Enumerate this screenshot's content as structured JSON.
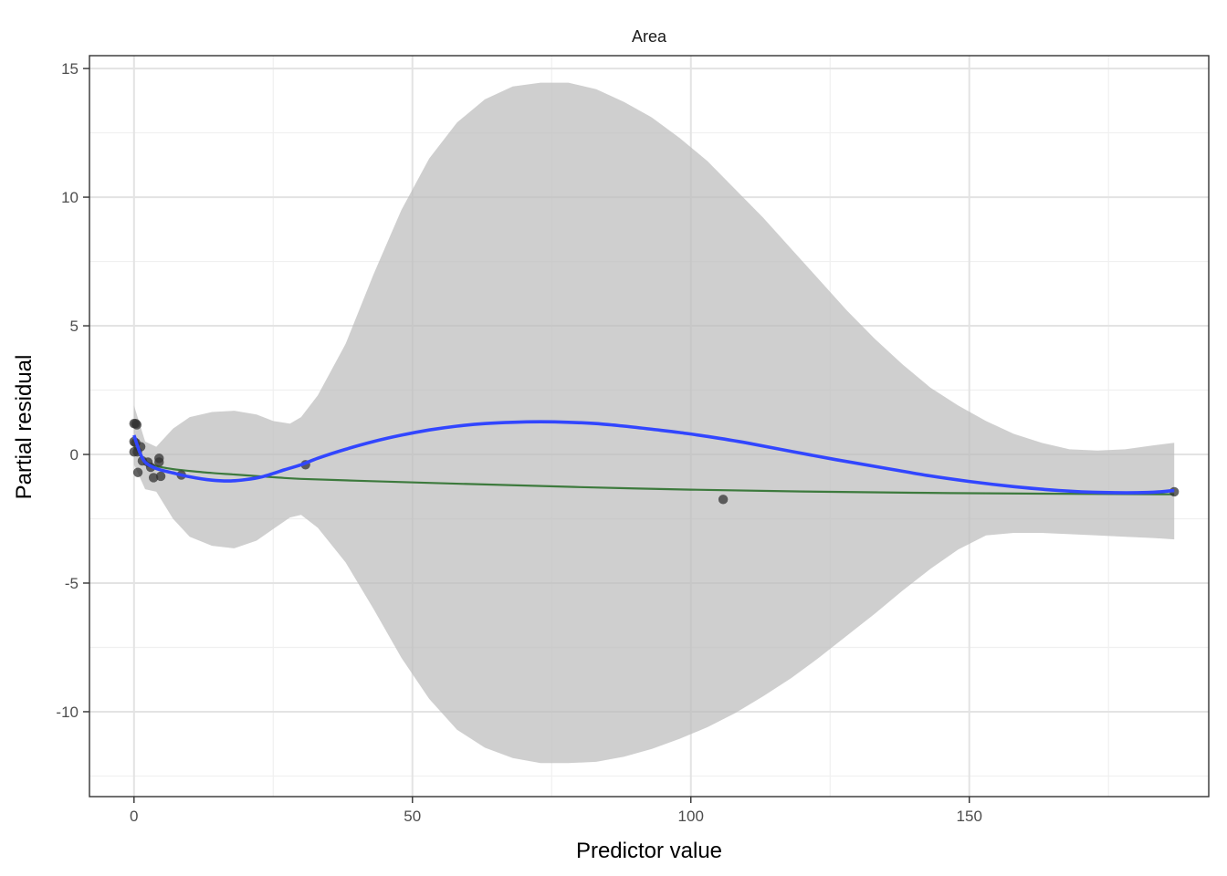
{
  "chart_data": {
    "type": "scatter",
    "facet_title": "Area",
    "xlabel": "Predictor value",
    "ylabel": "Partial residual",
    "xlim": [
      -8,
      193
    ],
    "ylim": [
      -13.3,
      15.5
    ],
    "x_ticks": [
      0,
      50,
      100,
      150
    ],
    "x_tick_labels": [
      "0",
      "50",
      "100",
      "150"
    ],
    "y_ticks": [
      -10,
      -5,
      0,
      5,
      10,
      15
    ],
    "y_tick_labels": [
      "-10",
      "-5",
      "0",
      "5",
      "10",
      "15"
    ],
    "grid": true,
    "colors": {
      "points": "#333333",
      "smooth": "#3246ff",
      "fit": "#3d7a3d",
      "ribbon": "#bdbdbd",
      "grid_major": "#e3e3e3",
      "grid_minor": "#f0f0f0",
      "panel_border": "#333333"
    },
    "points": [
      {
        "x": 0.0,
        "y": 1.2
      },
      {
        "x": 0.3,
        "y": 1.2
      },
      {
        "x": 0.5,
        "y": 1.15
      },
      {
        "x": 0.0,
        "y": 0.5
      },
      {
        "x": 0.3,
        "y": 0.45
      },
      {
        "x": 0.0,
        "y": 0.1
      },
      {
        "x": 0.6,
        "y": 0.1
      },
      {
        "x": 1.2,
        "y": 0.3
      },
      {
        "x": 0.7,
        "y": -0.7
      },
      {
        "x": 1.5,
        "y": -0.25
      },
      {
        "x": 2.5,
        "y": -0.3
      },
      {
        "x": 3.0,
        "y": -0.5
      },
      {
        "x": 3.5,
        "y": -0.9
      },
      {
        "x": 4.5,
        "y": -0.15
      },
      {
        "x": 4.5,
        "y": -0.3
      },
      {
        "x": 4.8,
        "y": -0.85
      },
      {
        "x": 8.5,
        "y": -0.8
      },
      {
        "x": 30.8,
        "y": -0.4
      },
      {
        "x": 105.8,
        "y": -1.75
      },
      {
        "x": 186.8,
        "y": -1.45
      }
    ],
    "smooth_line": {
      "x": [
        0,
        1,
        2,
        4,
        7,
        10,
        14,
        17,
        20,
        23,
        27,
        30,
        33,
        38,
        43,
        48,
        53,
        58,
        63,
        68,
        73,
        78,
        83,
        88,
        93,
        98,
        103,
        110,
        118,
        126,
        134,
        142,
        150,
        158,
        166,
        174,
        182,
        186.8
      ],
      "y": [
        0.75,
        0.1,
        -0.3,
        -0.55,
        -0.72,
        -0.87,
        -1.0,
        -1.03,
        -0.98,
        -0.87,
        -0.6,
        -0.4,
        -0.15,
        0.2,
        0.5,
        0.75,
        0.95,
        1.1,
        1.2,
        1.25,
        1.27,
        1.25,
        1.2,
        1.1,
        0.98,
        0.85,
        0.7,
        0.45,
        0.12,
        -0.2,
        -0.5,
        -0.8,
        -1.05,
        -1.25,
        -1.4,
        -1.48,
        -1.48,
        -1.4
      ]
    },
    "fit_line": {
      "x": [
        0,
        2,
        4,
        7,
        10,
        14,
        18,
        22,
        26,
        30,
        40,
        60,
        80,
        100,
        120,
        140,
        160,
        186.8
      ],
      "y": [
        0.3,
        -0.25,
        -0.45,
        -0.57,
        -0.64,
        -0.72,
        -0.78,
        -0.84,
        -0.9,
        -0.95,
        -1.02,
        -1.15,
        -1.27,
        -1.37,
        -1.44,
        -1.49,
        -1.52,
        -1.55
      ]
    },
    "confidence_band": {
      "x": [
        0,
        2,
        4,
        7,
        10,
        14,
        18,
        22,
        25,
        28,
        30,
        33,
        38,
        43,
        48,
        53,
        58,
        63,
        68,
        73,
        78,
        83,
        88,
        93,
        98,
        103,
        108,
        113,
        118,
        123,
        128,
        133,
        138,
        143,
        148,
        153,
        158,
        163,
        168,
        173,
        178,
        183,
        186.8
      ],
      "upper": [
        1.9,
        0.5,
        0.3,
        1.0,
        1.45,
        1.65,
        1.7,
        1.55,
        1.3,
        1.2,
        1.45,
        2.3,
        4.3,
        7.0,
        9.5,
        11.5,
        12.9,
        13.8,
        14.3,
        14.45,
        14.45,
        14.2,
        13.7,
        13.1,
        12.3,
        11.4,
        10.3,
        9.2,
        8.0,
        6.8,
        5.6,
        4.5,
        3.5,
        2.6,
        1.9,
        1.3,
        0.8,
        0.45,
        0.2,
        0.15,
        0.2,
        0.35,
        0.45
      ],
      "lower": [
        -0.4,
        -1.35,
        -1.45,
        -2.5,
        -3.2,
        -3.55,
        -3.65,
        -3.35,
        -2.9,
        -2.45,
        -2.35,
        -2.85,
        -4.2,
        -6.0,
        -7.9,
        -9.5,
        -10.7,
        -11.4,
        -11.8,
        -12.0,
        -12.0,
        -11.95,
        -11.75,
        -11.45,
        -11.05,
        -10.6,
        -10.05,
        -9.4,
        -8.7,
        -7.9,
        -7.05,
        -6.2,
        -5.3,
        -4.45,
        -3.7,
        -3.15,
        -3.05,
        -3.05,
        -3.1,
        -3.15,
        -3.2,
        -3.25,
        -3.3
      ]
    }
  }
}
